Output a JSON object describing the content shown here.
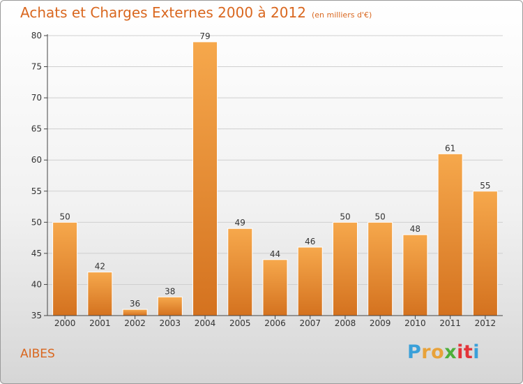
{
  "header": {
    "title": "Achats et Charges Externes 2000 à 2012",
    "subtitle": "(en milliers d'€)"
  },
  "footer": {
    "town": "AIBES",
    "logo_letters": [
      "P",
      "r",
      "o",
      "x",
      "i",
      "t",
      "i"
    ],
    "logo_colors": [
      "#3aa0d9",
      "#e8a23a",
      "#e8a23a",
      "#4caf3a",
      "#e3343a",
      "#e3343a",
      "#3aa0d9"
    ]
  },
  "colors": {
    "bar_light": "#f6a84c",
    "bar_dark": "#d4721f",
    "title": "#d9671f",
    "grid": "#cfcfcf",
    "axis": "#444444"
  },
  "chart_data": {
    "type": "bar",
    "categories": [
      "2000",
      "2001",
      "2002",
      "2003",
      "2004",
      "2005",
      "2006",
      "2007",
      "2008",
      "2009",
      "2010",
      "2011",
      "2012"
    ],
    "values": [
      50,
      42,
      36,
      38,
      79,
      49,
      44,
      46,
      50,
      50,
      48,
      61,
      55
    ],
    "data_labels": [
      "50",
      "42",
      "36",
      "38",
      "79",
      "49",
      "44",
      "46",
      "50",
      "50",
      "48",
      "61",
      "55"
    ],
    "ylim": [
      35,
      80
    ],
    "yticks": [
      35,
      40,
      45,
      50,
      55,
      60,
      65,
      70,
      75,
      80
    ],
    "ytick_labels": [
      "35",
      "40",
      "45",
      "50",
      "55",
      "60",
      "65",
      "70",
      "75",
      "80"
    ],
    "grid": true
  }
}
